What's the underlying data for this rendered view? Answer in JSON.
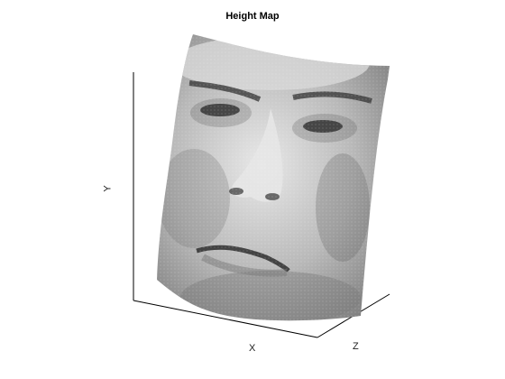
{
  "title": "Height Map",
  "axes": {
    "xlabel": "X",
    "ylabel": "Y",
    "zlabel": "Z"
  },
  "surface": {
    "colormap": "gray",
    "content": "grayscale photographic texture of a human face draped over a curved height-map mesh"
  },
  "colors": {
    "axis": "#000000",
    "background": "#ffffff"
  }
}
